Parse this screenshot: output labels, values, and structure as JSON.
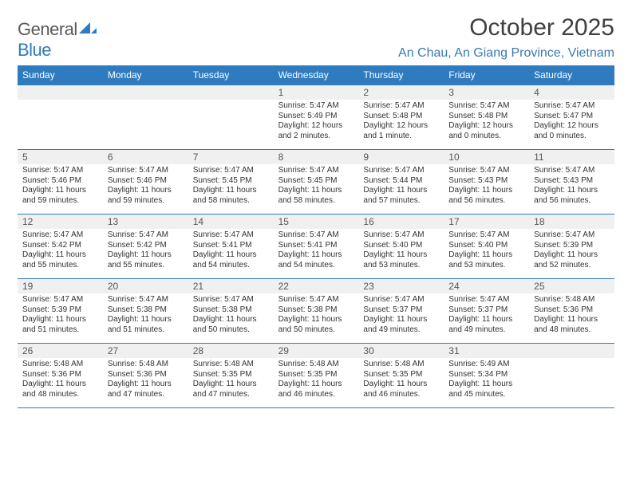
{
  "logo": {
    "text1": "General",
    "text2": "Blue"
  },
  "title": "October 2025",
  "location": "An Chau, An Giang Province, Vietnam",
  "colors": {
    "header_bg": "#2f7bbf",
    "header_text": "#ffffff",
    "accent": "#3a79b0",
    "date_bar_bg": "#f0f0f0",
    "rule": "#2f7bbf",
    "body_text": "#333333"
  },
  "day_names": [
    "Sunday",
    "Monday",
    "Tuesday",
    "Wednesday",
    "Thursday",
    "Friday",
    "Saturday"
  ],
  "weeks": [
    [
      {
        "date": "",
        "lines": []
      },
      {
        "date": "",
        "lines": []
      },
      {
        "date": "",
        "lines": []
      },
      {
        "date": "1",
        "lines": [
          "Sunrise: 5:47 AM",
          "Sunset: 5:49 PM",
          "Daylight: 12 hours and 2 minutes."
        ]
      },
      {
        "date": "2",
        "lines": [
          "Sunrise: 5:47 AM",
          "Sunset: 5:48 PM",
          "Daylight: 12 hours and 1 minute."
        ]
      },
      {
        "date": "3",
        "lines": [
          "Sunrise: 5:47 AM",
          "Sunset: 5:48 PM",
          "Daylight: 12 hours and 0 minutes."
        ]
      },
      {
        "date": "4",
        "lines": [
          "Sunrise: 5:47 AM",
          "Sunset: 5:47 PM",
          "Daylight: 12 hours and 0 minutes."
        ]
      }
    ],
    [
      {
        "date": "5",
        "lines": [
          "Sunrise: 5:47 AM",
          "Sunset: 5:46 PM",
          "Daylight: 11 hours and 59 minutes."
        ]
      },
      {
        "date": "6",
        "lines": [
          "Sunrise: 5:47 AM",
          "Sunset: 5:46 PM",
          "Daylight: 11 hours and 59 minutes."
        ]
      },
      {
        "date": "7",
        "lines": [
          "Sunrise: 5:47 AM",
          "Sunset: 5:45 PM",
          "Daylight: 11 hours and 58 minutes."
        ]
      },
      {
        "date": "8",
        "lines": [
          "Sunrise: 5:47 AM",
          "Sunset: 5:45 PM",
          "Daylight: 11 hours and 58 minutes."
        ]
      },
      {
        "date": "9",
        "lines": [
          "Sunrise: 5:47 AM",
          "Sunset: 5:44 PM",
          "Daylight: 11 hours and 57 minutes."
        ]
      },
      {
        "date": "10",
        "lines": [
          "Sunrise: 5:47 AM",
          "Sunset: 5:43 PM",
          "Daylight: 11 hours and 56 minutes."
        ]
      },
      {
        "date": "11",
        "lines": [
          "Sunrise: 5:47 AM",
          "Sunset: 5:43 PM",
          "Daylight: 11 hours and 56 minutes."
        ]
      }
    ],
    [
      {
        "date": "12",
        "lines": [
          "Sunrise: 5:47 AM",
          "Sunset: 5:42 PM",
          "Daylight: 11 hours and 55 minutes."
        ]
      },
      {
        "date": "13",
        "lines": [
          "Sunrise: 5:47 AM",
          "Sunset: 5:42 PM",
          "Daylight: 11 hours and 55 minutes."
        ]
      },
      {
        "date": "14",
        "lines": [
          "Sunrise: 5:47 AM",
          "Sunset: 5:41 PM",
          "Daylight: 11 hours and 54 minutes."
        ]
      },
      {
        "date": "15",
        "lines": [
          "Sunrise: 5:47 AM",
          "Sunset: 5:41 PM",
          "Daylight: 11 hours and 54 minutes."
        ]
      },
      {
        "date": "16",
        "lines": [
          "Sunrise: 5:47 AM",
          "Sunset: 5:40 PM",
          "Daylight: 11 hours and 53 minutes."
        ]
      },
      {
        "date": "17",
        "lines": [
          "Sunrise: 5:47 AM",
          "Sunset: 5:40 PM",
          "Daylight: 11 hours and 53 minutes."
        ]
      },
      {
        "date": "18",
        "lines": [
          "Sunrise: 5:47 AM",
          "Sunset: 5:39 PM",
          "Daylight: 11 hours and 52 minutes."
        ]
      }
    ],
    [
      {
        "date": "19",
        "lines": [
          "Sunrise: 5:47 AM",
          "Sunset: 5:39 PM",
          "Daylight: 11 hours and 51 minutes."
        ]
      },
      {
        "date": "20",
        "lines": [
          "Sunrise: 5:47 AM",
          "Sunset: 5:38 PM",
          "Daylight: 11 hours and 51 minutes."
        ]
      },
      {
        "date": "21",
        "lines": [
          "Sunrise: 5:47 AM",
          "Sunset: 5:38 PM",
          "Daylight: 11 hours and 50 minutes."
        ]
      },
      {
        "date": "22",
        "lines": [
          "Sunrise: 5:47 AM",
          "Sunset: 5:38 PM",
          "Daylight: 11 hours and 50 minutes."
        ]
      },
      {
        "date": "23",
        "lines": [
          "Sunrise: 5:47 AM",
          "Sunset: 5:37 PM",
          "Daylight: 11 hours and 49 minutes."
        ]
      },
      {
        "date": "24",
        "lines": [
          "Sunrise: 5:47 AM",
          "Sunset: 5:37 PM",
          "Daylight: 11 hours and 49 minutes."
        ]
      },
      {
        "date": "25",
        "lines": [
          "Sunrise: 5:48 AM",
          "Sunset: 5:36 PM",
          "Daylight: 11 hours and 48 minutes."
        ]
      }
    ],
    [
      {
        "date": "26",
        "lines": [
          "Sunrise: 5:48 AM",
          "Sunset: 5:36 PM",
          "Daylight: 11 hours and 48 minutes."
        ]
      },
      {
        "date": "27",
        "lines": [
          "Sunrise: 5:48 AM",
          "Sunset: 5:36 PM",
          "Daylight: 11 hours and 47 minutes."
        ]
      },
      {
        "date": "28",
        "lines": [
          "Sunrise: 5:48 AM",
          "Sunset: 5:35 PM",
          "Daylight: 11 hours and 47 minutes."
        ]
      },
      {
        "date": "29",
        "lines": [
          "Sunrise: 5:48 AM",
          "Sunset: 5:35 PM",
          "Daylight: 11 hours and 46 minutes."
        ]
      },
      {
        "date": "30",
        "lines": [
          "Sunrise: 5:48 AM",
          "Sunset: 5:35 PM",
          "Daylight: 11 hours and 46 minutes."
        ]
      },
      {
        "date": "31",
        "lines": [
          "Sunrise: 5:49 AM",
          "Sunset: 5:34 PM",
          "Daylight: 11 hours and 45 minutes."
        ]
      },
      {
        "date": "",
        "lines": []
      }
    ]
  ]
}
